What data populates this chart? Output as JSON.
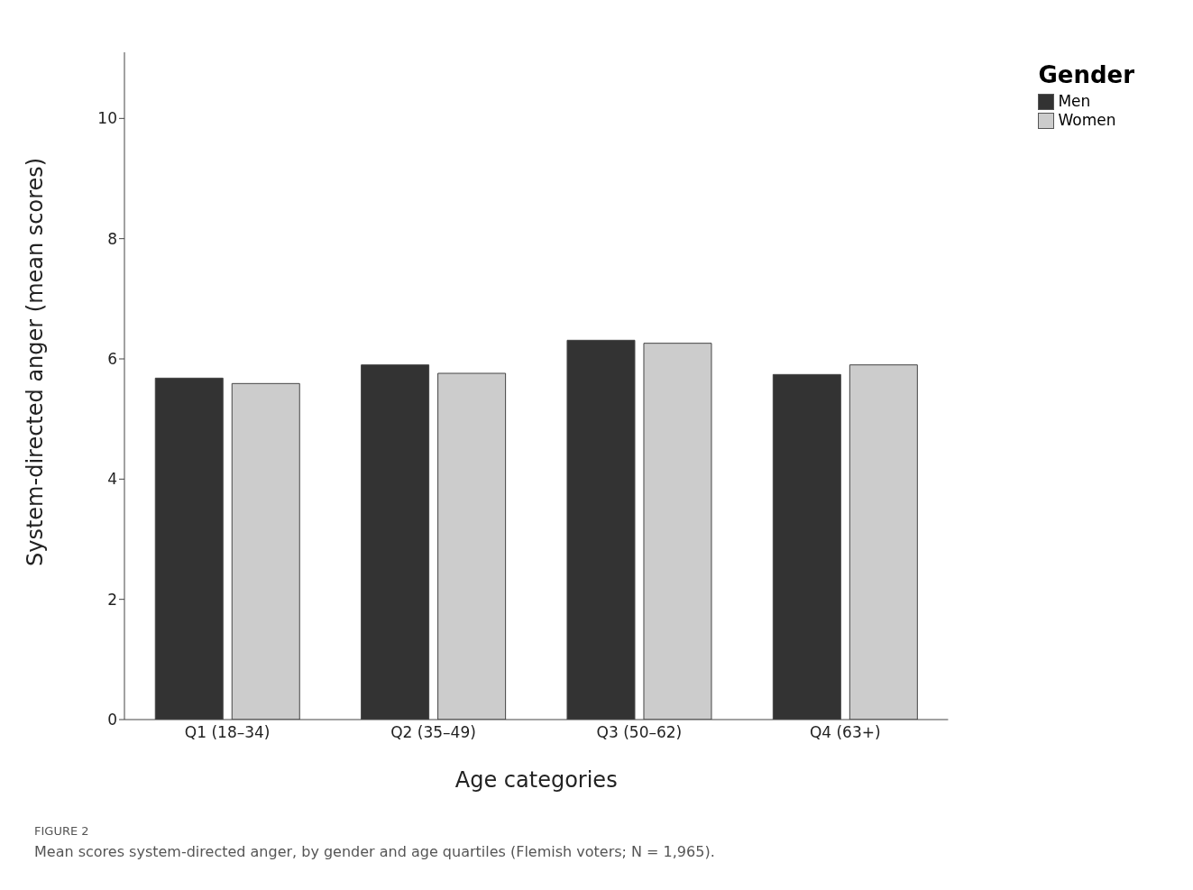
{
  "chart_data": {
    "type": "bar",
    "xlabel": "Age categories",
    "ylabel": "System-directed anger (mean scores)",
    "legend_title": "Gender",
    "categories": [
      "Q1 (18–34)",
      "Q2 (35–49)",
      "Q3 (50–62)",
      "Q4 (63+)"
    ],
    "series": [
      {
        "name": "Men",
        "color": "#333333",
        "values": [
          5.68,
          5.9,
          6.31,
          5.74
        ]
      },
      {
        "name": "Women",
        "color": "#cccccc",
        "values": [
          5.59,
          5.76,
          6.26,
          5.9
        ]
      }
    ],
    "ylim": [
      0,
      11.1
    ],
    "yticks": [
      0,
      2,
      4,
      6,
      8,
      10
    ],
    "grid": false,
    "legend": "top right",
    "annotations": [
      "FIGURE 2",
      "Mean scores system-directed anger, by gender and age quartiles (Flemish voters; N = 1,965)."
    ]
  }
}
